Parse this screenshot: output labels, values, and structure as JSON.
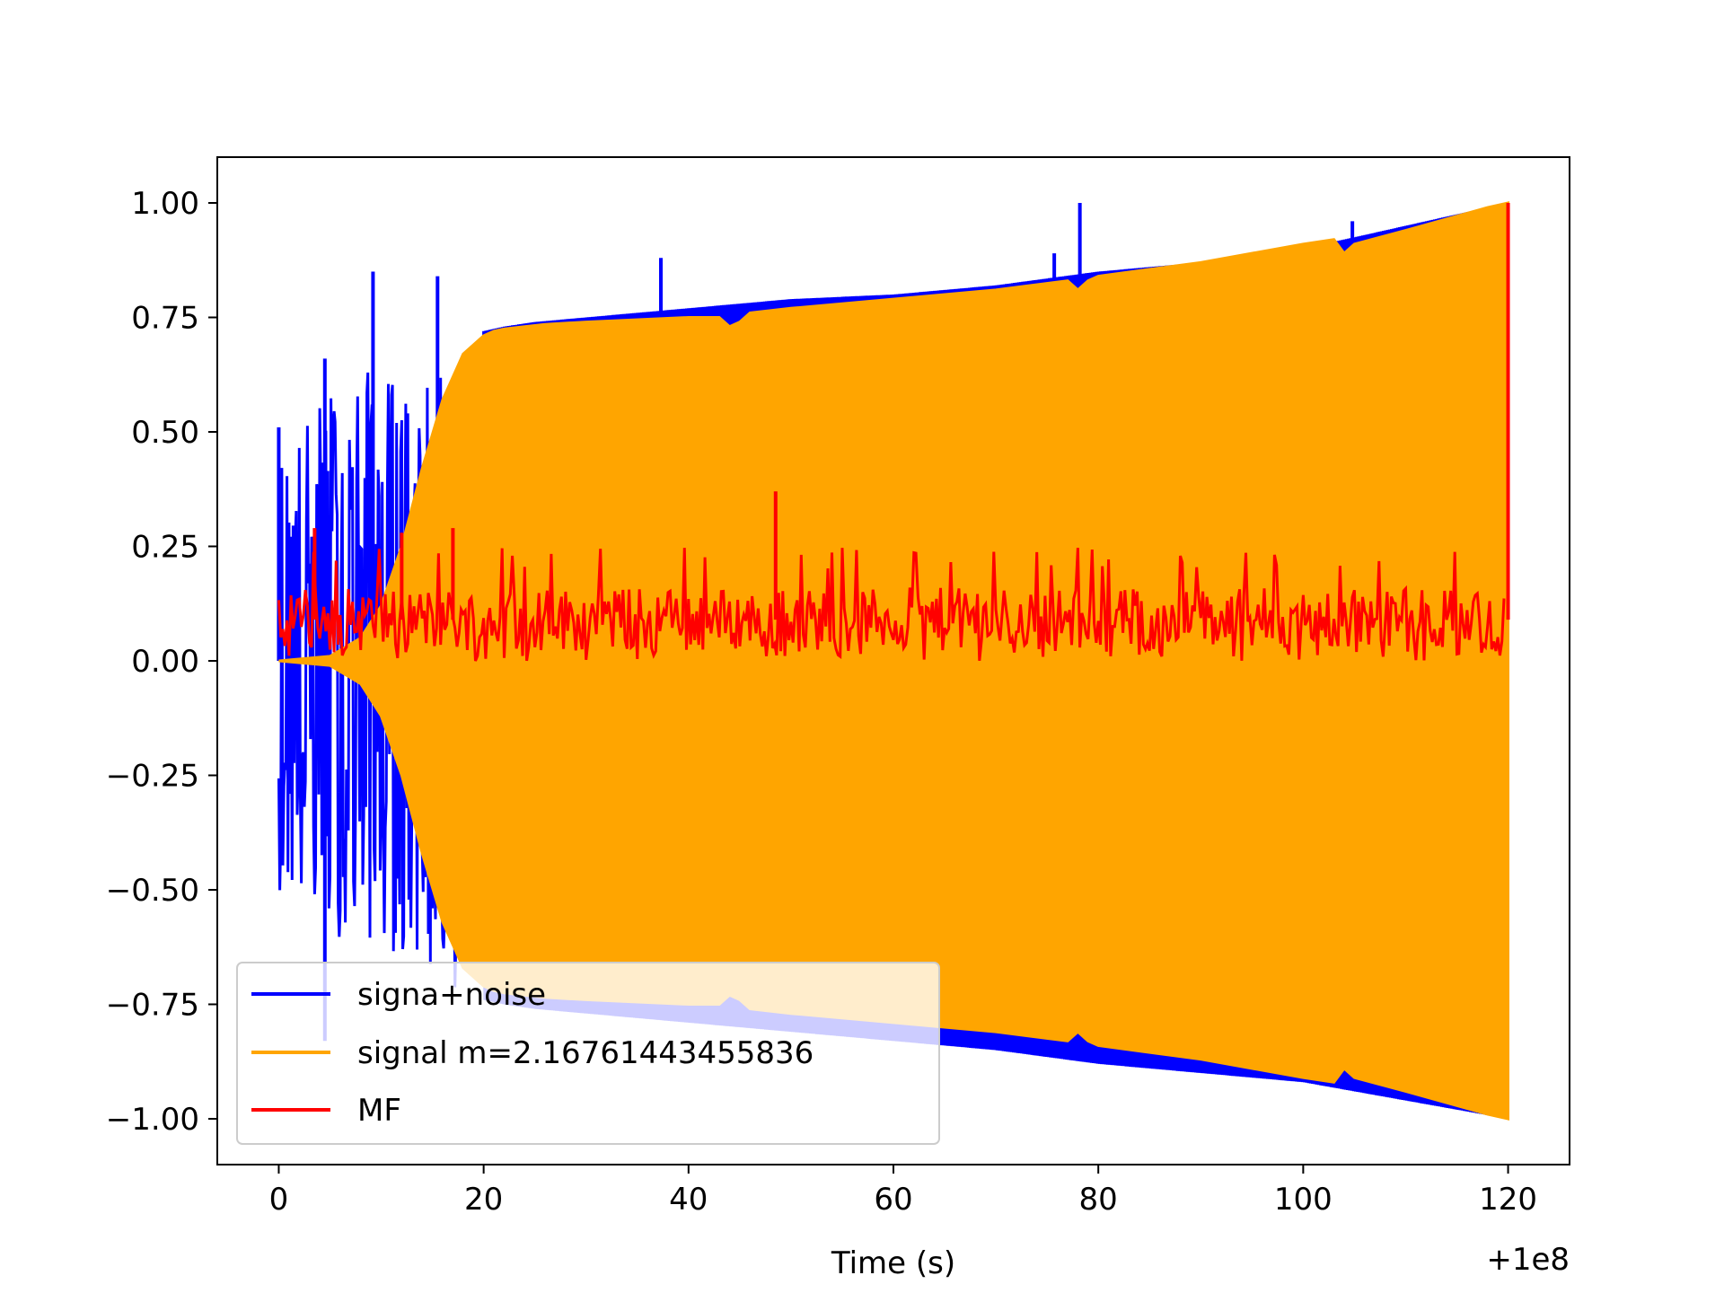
{
  "chart_data": {
    "type": "line",
    "title": "",
    "xlabel": "Time (s)",
    "ylabel": "",
    "x_offset_label": "+1e8",
    "xlim": [
      -6,
      126
    ],
    "ylim": [
      -1.1,
      1.1
    ],
    "x_ticks": [
      0,
      20,
      40,
      60,
      80,
      100,
      120
    ],
    "y_ticks": [
      1.0,
      0.75,
      0.5,
      0.25,
      0.0,
      -0.25,
      -0.5,
      -0.75,
      -1.0
    ],
    "x_tick_labels": [
      "0",
      "20",
      "40",
      "60",
      "80",
      "100",
      "120"
    ],
    "y_tick_labels": [
      "1.00",
      "0.75",
      "0.50",
      "0.25",
      "0.00",
      "−0.25",
      "−0.50",
      "−0.75",
      "−1.00"
    ],
    "grid": false,
    "legend_position": "lower-left",
    "series": [
      {
        "name": "signa+noise",
        "color": "#0000ff",
        "envelope": {
          "x": [
            0,
            5,
            10,
            12,
            15,
            18,
            20,
            22,
            25,
            30,
            40,
            50,
            60,
            70,
            80,
            90,
            100,
            110,
            120
          ],
          "upper": [
            0.45,
            0.6,
            0.65,
            0.6,
            0.6,
            0.7,
            0.72,
            0.73,
            0.74,
            0.75,
            0.77,
            0.79,
            0.8,
            0.82,
            0.85,
            0.87,
            0.9,
            0.95,
            1.0
          ],
          "lower": [
            -0.5,
            -0.6,
            -0.62,
            -0.65,
            -0.7,
            -0.73,
            -0.74,
            -0.75,
            -0.76,
            -0.77,
            -0.79,
            -0.81,
            -0.83,
            -0.85,
            -0.88,
            -0.9,
            -0.92,
            -0.96,
            -1.0
          ]
        },
        "spikes": [
          [
            0,
            0.51
          ],
          [
            4.5,
            0.66
          ],
          [
            9.2,
            0.85
          ],
          [
            15.5,
            0.84
          ],
          [
            37.3,
            0.88
          ],
          [
            75.7,
            0.89
          ],
          [
            78.2,
            1.0
          ],
          [
            104.8,
            0.96
          ],
          [
            4.5,
            -0.83
          ],
          [
            75.7,
            -0.86
          ]
        ]
      },
      {
        "name": "signal m=2.16761443455836",
        "color": "#ffa500",
        "envelope": {
          "x": [
            0,
            5,
            8,
            10,
            12,
            14,
            16,
            18,
            20,
            21,
            22,
            24,
            26,
            30,
            40,
            43,
            44,
            45,
            46,
            50,
            60,
            70,
            77,
            78,
            79,
            80,
            90,
            100,
            103,
            104,
            105,
            110,
            118,
            120
          ],
          "upper": [
            0.0,
            0.01,
            0.05,
            0.12,
            0.25,
            0.42,
            0.57,
            0.67,
            0.71,
            0.72,
            0.725,
            0.73,
            0.735,
            0.74,
            0.75,
            0.75,
            0.73,
            0.74,
            0.76,
            0.77,
            0.79,
            0.81,
            0.83,
            0.81,
            0.83,
            0.84,
            0.87,
            0.91,
            0.92,
            0.89,
            0.91,
            0.94,
            0.99,
            1.0
          ],
          "lower": [
            0.0,
            -0.01,
            -0.05,
            -0.12,
            -0.25,
            -0.42,
            -0.57,
            -0.67,
            -0.71,
            -0.72,
            -0.725,
            -0.73,
            -0.735,
            -0.74,
            -0.75,
            -0.75,
            -0.73,
            -0.74,
            -0.76,
            -0.77,
            -0.79,
            -0.81,
            -0.83,
            -0.81,
            -0.83,
            -0.84,
            -0.87,
            -0.91,
            -0.92,
            -0.89,
            -0.91,
            -0.94,
            -0.99,
            -1.0
          ]
        }
      },
      {
        "name": "MF",
        "color": "#ff0000",
        "baseline": 0.09,
        "band": [
          0.0,
          0.2
        ],
        "peaks": [
          [
            3.5,
            0.29
          ],
          [
            12.0,
            0.28
          ],
          [
            17.0,
            0.29
          ],
          [
            48.5,
            0.37
          ],
          [
            120.0,
            1.0
          ]
        ]
      }
    ]
  }
}
